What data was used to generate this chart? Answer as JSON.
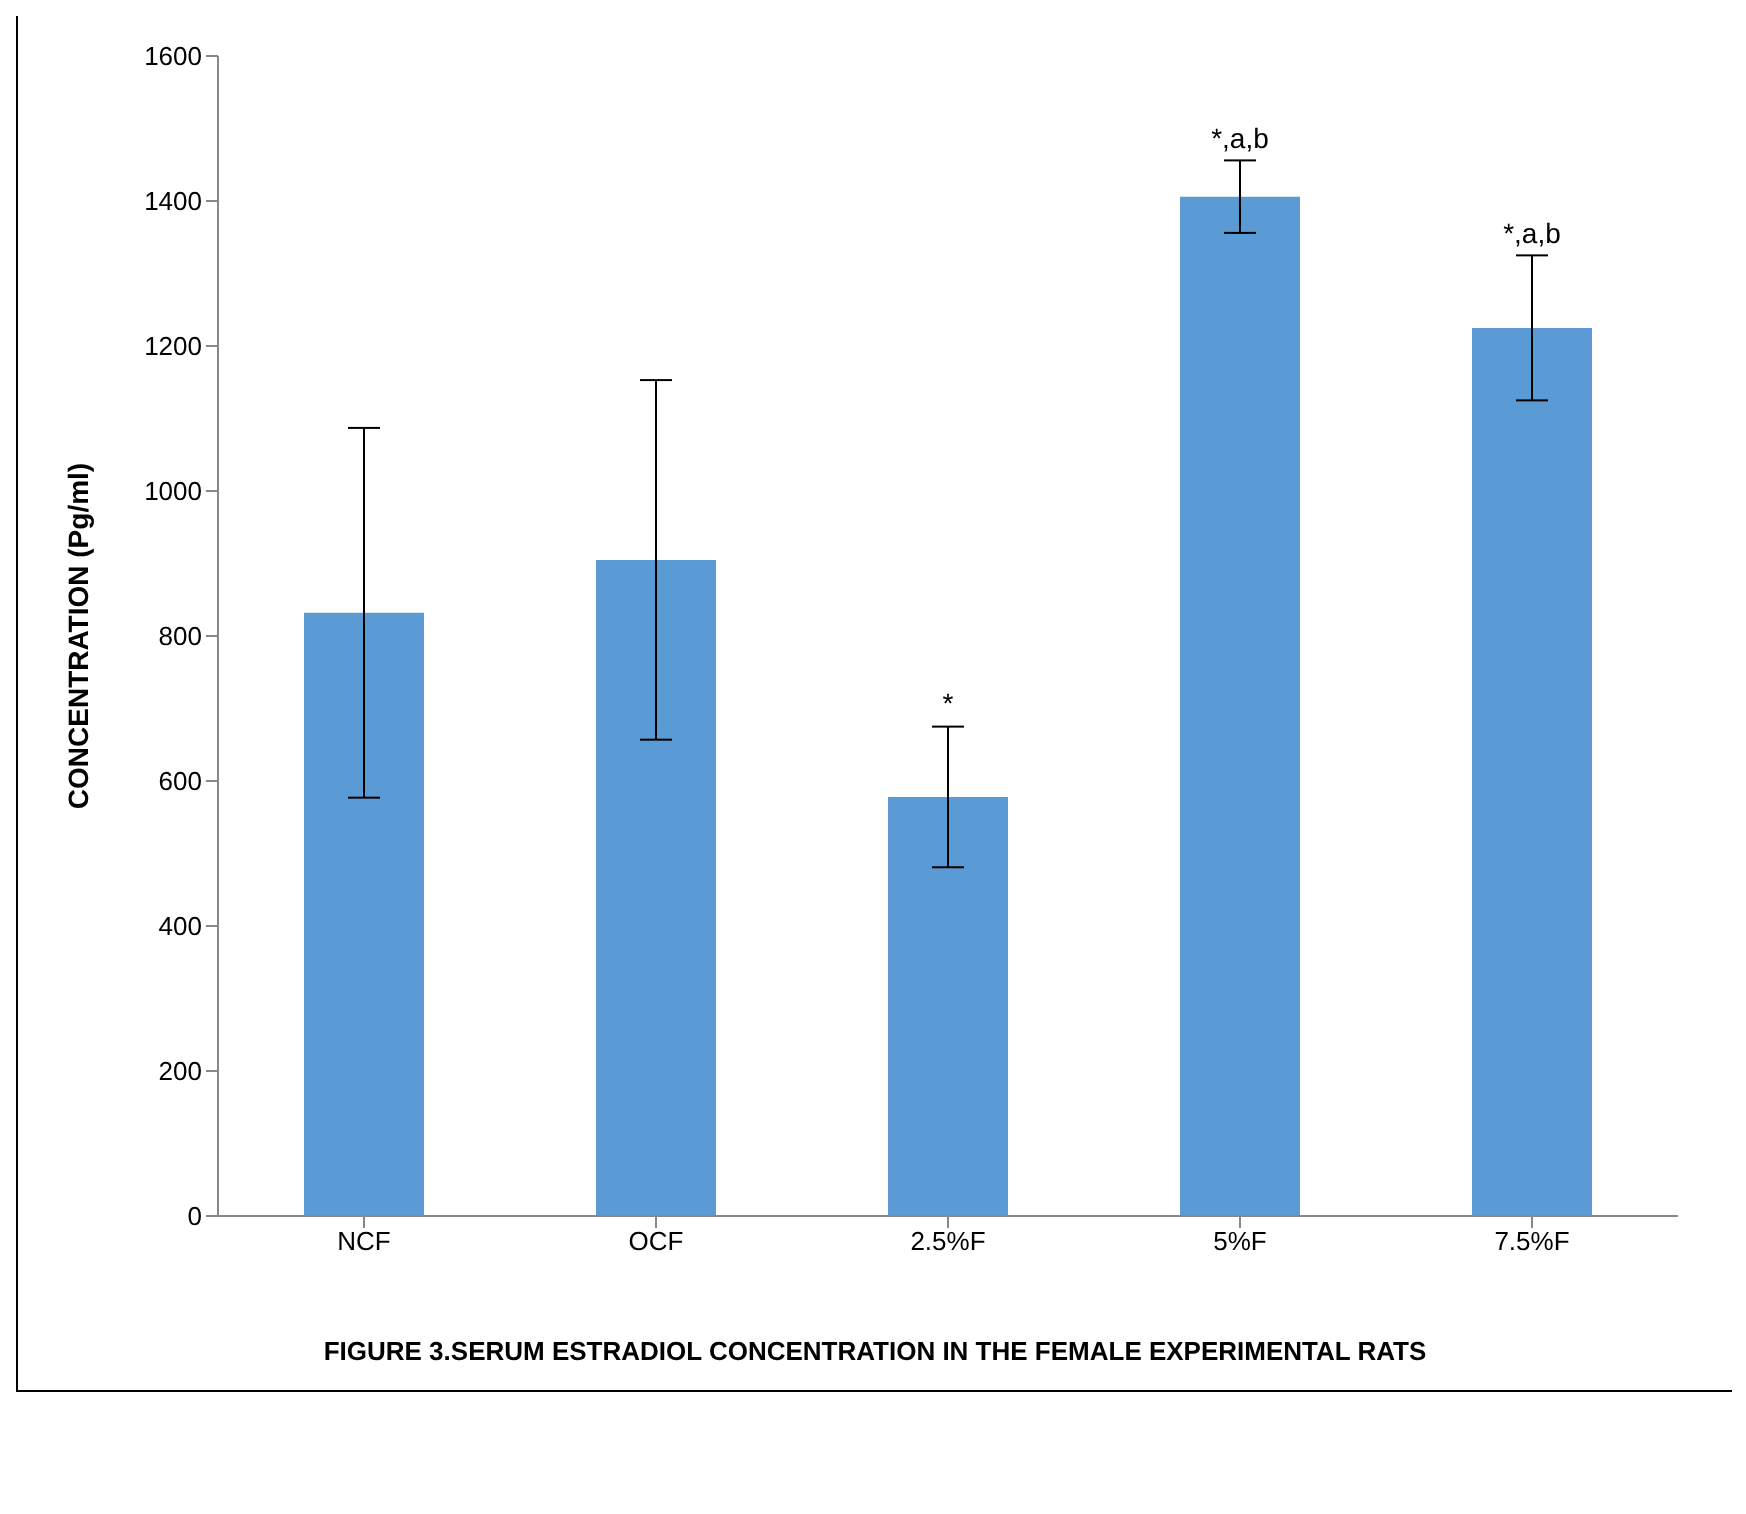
{
  "chart_data": {
    "type": "bar",
    "title": "FIGURE 3.SERUM ESTRADIOL CONCENTRATION IN THE FEMALE EXPERIMENTAL RATS",
    "ylabel": "CONCENTRATION (Pg/ml)",
    "categories": [
      "NCF",
      "OCF",
      "2.5%F",
      "5%F",
      "7.5%F"
    ],
    "values": [
      832,
      905,
      578,
      1406,
      1225
    ],
    "errors": [
      255,
      248,
      97,
      50,
      100
    ],
    "color": "#5b9bd5",
    "ylim": [
      0,
      1600
    ],
    "yticks": [
      0,
      200,
      400,
      600,
      800,
      1000,
      1200,
      1400,
      1600
    ],
    "grid": false,
    "annotations": [
      {
        "text": "*",
        "x": "2.5%F",
        "y": 677
      },
      {
        "text": "*,a,b",
        "x": "5%F",
        "y": 1456
      },
      {
        "text": "*,a,b",
        "x": "7.5%F",
        "y": 1325
      }
    ]
  }
}
